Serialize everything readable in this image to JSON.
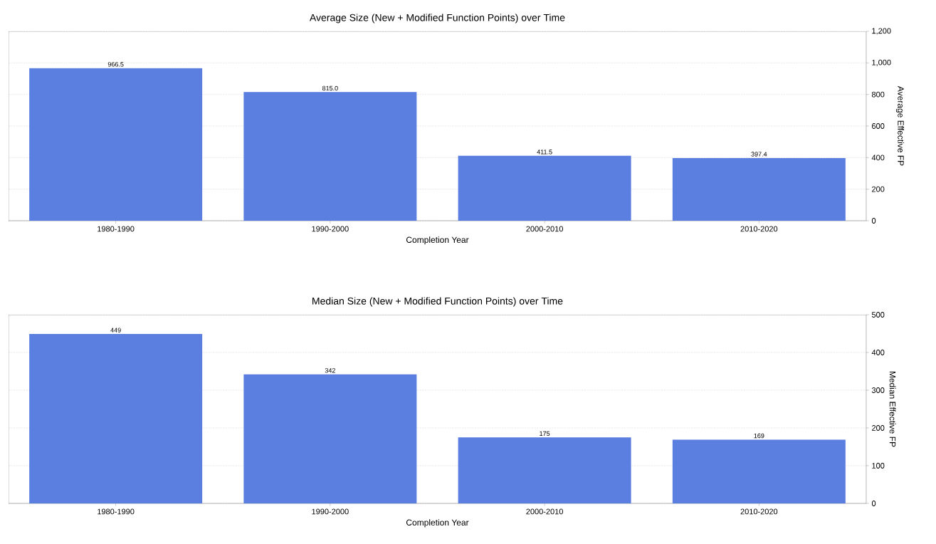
{
  "chart_data": [
    {
      "type": "bar",
      "title": "Average Size (New + Modified Function Points) over Time",
      "xlabel": "Completion Year",
      "ylabel": "Average Effective FP",
      "categories": [
        "1980-1990",
        "1990-2000",
        "2000-2010",
        "2010-2020"
      ],
      "values": [
        966.5,
        815.0,
        411.5,
        397.4
      ],
      "value_labels": [
        "966.5",
        "815.0",
        "411.5",
        "397.4"
      ],
      "color": "#5b7fe0",
      "ylim": [
        0,
        1200
      ],
      "yticks": [
        0,
        200,
        400,
        600,
        800,
        {
          "value": 1000,
          "label": "1,000"
        },
        {
          "value": 1200,
          "label": "1,200"
        }
      ],
      "grid": "y"
    },
    {
      "type": "bar",
      "title": "Median Size (New + Modified Function Points) over Time",
      "xlabel": "Completion Year",
      "ylabel": "Median Effective FP",
      "categories": [
        "1980-1990",
        "1990-2000",
        "2000-2010",
        "2010-2020"
      ],
      "values": [
        449,
        342,
        175,
        169
      ],
      "data_labels": true,
      "color": "#5b7fe0",
      "ylim": [
        0,
        500
      ],
      "yticks": [
        0,
        100,
        200,
        300,
        400,
        500
      ],
      "grid": "y"
    }
  ]
}
